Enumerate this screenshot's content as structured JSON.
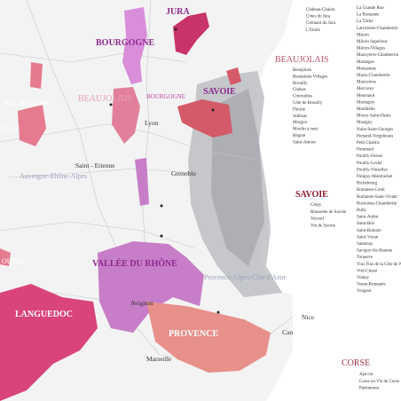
{
  "map_labels": {
    "jura": "JURA",
    "bourgogne": "BOURGOGNE",
    "beaujolais": "BEAUJOLAIS",
    "bourgogne_small": "BOURGOGNE",
    "savoie": "SAVOIE",
    "val_de_loire": "VAL DE LOIRE",
    "ouest": "OUEST",
    "vallee_du_rhone": "VALLÉE DU RHÔNE",
    "languedoc": "LANGUEDOC",
    "provence": "PROVENCE"
  },
  "cities": {
    "lyon": "Lyon",
    "saint_etienne": "Saint - Etienne",
    "grenoble": "Grenoble",
    "avignon": "Avignon",
    "marseille": "Marseille",
    "nice": "Nice",
    "cannes": "Cannes",
    "ferrand": "ferrand"
  },
  "admin_regions": {
    "ara": "Auvergne-Rhône-Alpes",
    "paca": "Provence-Alpes-Côte d'Azur"
  },
  "legend": {
    "jura": {
      "items": [
        "Château-Chalon",
        "Côtes du Jura",
        "Crémant du Jura",
        "L'Etoile"
      ]
    },
    "beaujolais": {
      "title": "BEAUJOLAIS",
      "items": [
        "Beaujolais",
        "Beaujolais-Villages",
        "Brouilly",
        "Chénas",
        "Chiroubles",
        "Côte de Brouilly",
        "Fleurie",
        "Juliénas",
        "Morgon",
        "Moulin à vent",
        "Régnié",
        "Saint-Amour"
      ]
    },
    "savoie": {
      "title": "SAVOIE",
      "items": [
        "Crépy",
        "Roussette de Savoie",
        "Seyssel",
        "Vin de Savoie"
      ]
    },
    "corse": {
      "title": "CORSE",
      "items": [
        "Ajaccio",
        "Corse ou Vin de Corse",
        "Patrimonio"
      ]
    },
    "bourgogne": {
      "items": [
        "La Grande Rue",
        "La Romanée",
        "La Tâche",
        "Latricières-Chambertin",
        "Mâcon",
        "Mâcon Supérieur",
        "Mâcon-Villages",
        "Mazoyères-Chambertin",
        "Maranges",
        "Marsannay",
        "Mazis-Chambertin",
        "Mazoyères",
        "Mercurey",
        "Meursault",
        "Montagny",
        "Monthélie",
        "Morey-Saint-Denis",
        "Musigny",
        "Nuits-Saint-Georges",
        "Pernand-Vergelesses",
        "Petit Chablis",
        "Pommard",
        "Pouilly-Fuissé",
        "Pouilly-Loché",
        "Pouilly-Vinzelles",
        "Puligny-Montrachet",
        "Richebourg",
        "Romanée-Conti",
        "Romanée-Saint-Vivant",
        "Ruchottes-Chambertin",
        "Rully",
        "Saint-Aubin",
        "Saint-Bris",
        "Saint-Romain",
        "Saint-Véran",
        "Santenay",
        "Savigny-lès-Beaune",
        "Tonnerre",
        "Vins Fins de la Côte de Nuits",
        "Viré-Clessé",
        "Volnay",
        "Vosne-Romanée",
        "Vougeot"
      ]
    }
  }
}
